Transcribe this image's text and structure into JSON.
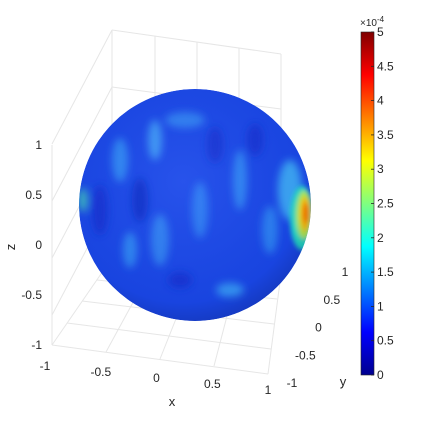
{
  "chart_data": {
    "type": "heatmap",
    "plot_style": "3d-surface-sphere",
    "title": "",
    "xlabel": "x",
    "ylabel": "y",
    "zlabel": "z",
    "xlim": [
      -1,
      1
    ],
    "ylim": [
      -1,
      1
    ],
    "zlim": [
      -1,
      1
    ],
    "x_ticks": [
      "-1",
      "-0.5",
      "0",
      "0.5",
      "1"
    ],
    "y_ticks": [
      "-1",
      "-0.5",
      "0",
      "0.5",
      "1"
    ],
    "z_ticks": [
      "-1",
      "-0.5",
      "0",
      "0.5",
      "1"
    ],
    "grid": true,
    "colormap": "jet",
    "colorbar": {
      "placement": "right",
      "min": 0,
      "max": 5,
      "exponent_label": "×10",
      "exponent_power": "-4",
      "ticks": [
        "0",
        "0.5",
        "1",
        "1.5",
        "2",
        "2.5",
        "3",
        "3.5",
        "4",
        "4.5",
        "5"
      ]
    },
    "surface_summary": {
      "shape": "unit sphere",
      "background_level": 0.7,
      "peak_value": 3.6,
      "peak_location": "right limb, near z = 0.3"
    },
    "colors": {
      "axis": "#262626",
      "grid": "#e6e6e6",
      "background": "#ffffff"
    }
  }
}
